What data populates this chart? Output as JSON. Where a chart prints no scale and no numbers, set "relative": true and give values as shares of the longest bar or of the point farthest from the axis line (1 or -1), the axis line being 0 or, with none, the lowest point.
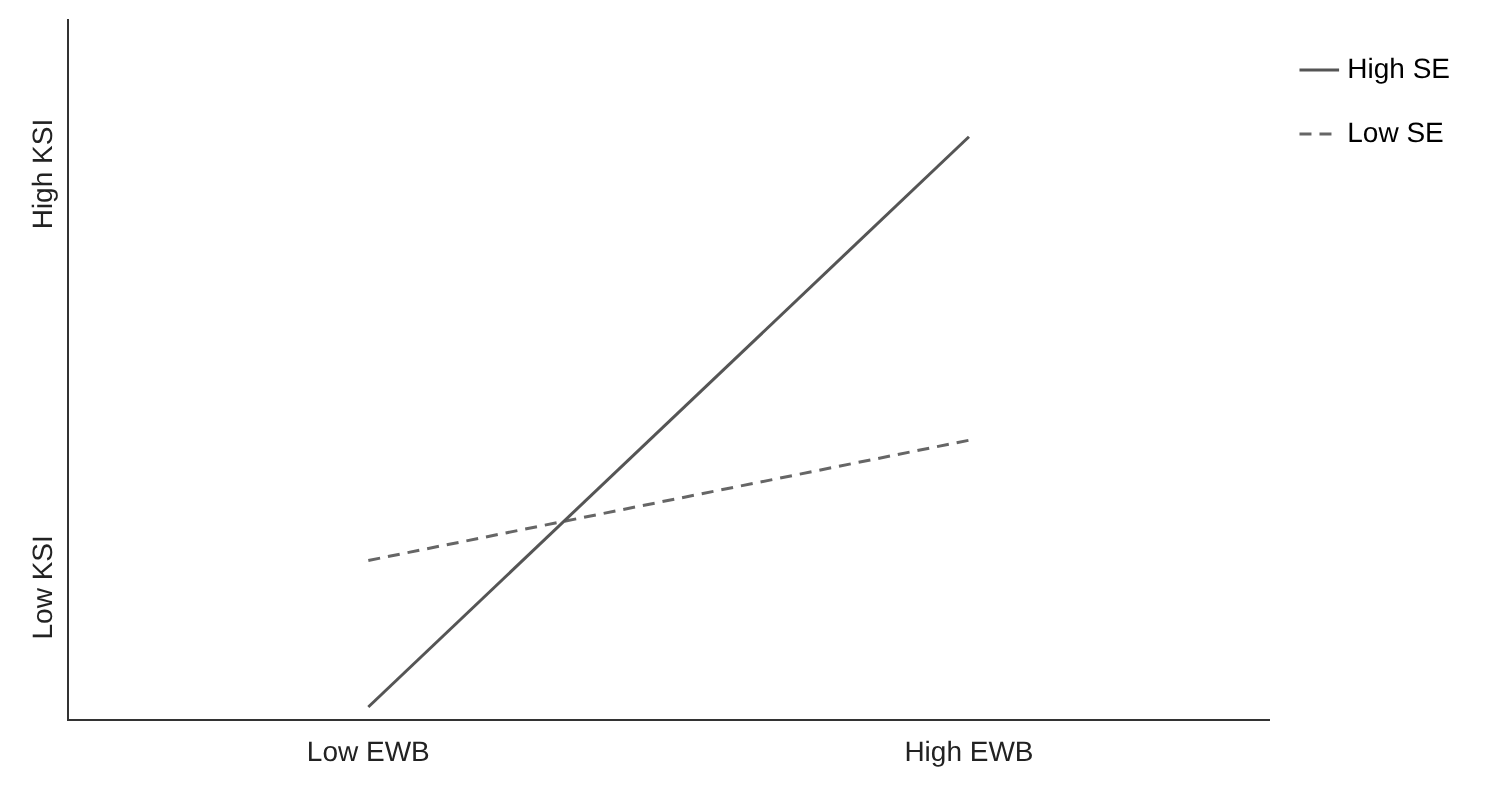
{
  "chart_data": {
    "type": "line",
    "relative": true,
    "categories": [
      "Low EWB",
      "High EWB"
    ],
    "annotations": [
      "Low KSI",
      "High KSI"
    ],
    "grid": false,
    "legend": "top right",
    "marker": "none",
    "series": [
      {
        "name": "High SE",
        "color": "#555555",
        "line_style": "solid",
        "values": [
          0.023,
          1
        ]
      },
      {
        "name": "Low SE",
        "color": "#666666",
        "line_style": "dashed",
        "values": [
          0.274,
          0.48
        ]
      }
    ]
  }
}
